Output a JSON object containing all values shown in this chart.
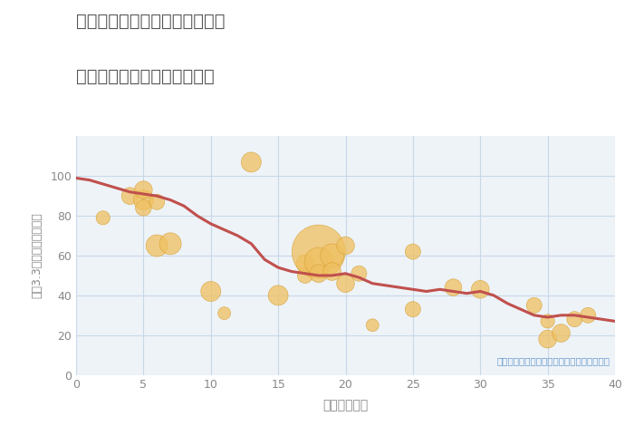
{
  "title_line1": "愛知県海部郡蟹江町蟹江新町の",
  "title_line2": "築年数別中古マンション価格",
  "xlabel": "築年数（年）",
  "ylabel": "坪（3.3㎡）単価（万円）",
  "xlim": [
    0,
    40
  ],
  "ylim": [
    0,
    120
  ],
  "xticks": [
    0,
    5,
    10,
    15,
    20,
    25,
    30,
    35,
    40
  ],
  "yticks": [
    0,
    20,
    40,
    60,
    80,
    100
  ],
  "background_color": "#eef3f8",
  "grid_color": "#c8d8e8",
  "line_color": "#c0504d",
  "scatter_color": "#f0c060",
  "scatter_edge": "#d4a030",
  "annotation": "円の大きさは、取引のあった物件面積を示す",
  "annotation_color": "#6699cc",
  "title_color": "#555555",
  "axis_color": "#888888",
  "trend_x": [
    0,
    1,
    2,
    3,
    4,
    5,
    6,
    7,
    8,
    9,
    10,
    11,
    12,
    13,
    14,
    15,
    16,
    17,
    18,
    19,
    20,
    21,
    22,
    23,
    24,
    25,
    26,
    27,
    28,
    29,
    30,
    31,
    32,
    33,
    34,
    35,
    36,
    37,
    38,
    39,
    40
  ],
  "trend_y": [
    99,
    98,
    96,
    94,
    92,
    91,
    90,
    88,
    85,
    80,
    76,
    73,
    70,
    66,
    58,
    54,
    52,
    51,
    50,
    50,
    51,
    49,
    46,
    45,
    44,
    43,
    42,
    43,
    42,
    41,
    42,
    40,
    36,
    33,
    30,
    29,
    30,
    30,
    29,
    28,
    27
  ],
  "scatter_x": [
    2,
    4,
    5,
    5,
    5,
    6,
    6,
    7,
    10,
    11,
    13,
    15,
    17,
    17,
    18,
    18,
    18,
    19,
    19,
    20,
    20,
    21,
    22,
    25,
    25,
    28,
    30,
    34,
    35,
    35,
    36,
    37,
    38
  ],
  "scatter_y": [
    79,
    90,
    88,
    93,
    84,
    65,
    87,
    66,
    42,
    31,
    107,
    40,
    56,
    50,
    62,
    57,
    51,
    60,
    52,
    65,
    46,
    51,
    25,
    62,
    33,
    44,
    43,
    35,
    18,
    27,
    21,
    28,
    30
  ],
  "scatter_size": [
    120,
    180,
    250,
    200,
    160,
    300,
    150,
    300,
    250,
    100,
    250,
    250,
    200,
    150,
    1800,
    500,
    200,
    350,
    200,
    200,
    200,
    150,
    100,
    150,
    150,
    180,
    200,
    150,
    200,
    120,
    200,
    150,
    150
  ]
}
